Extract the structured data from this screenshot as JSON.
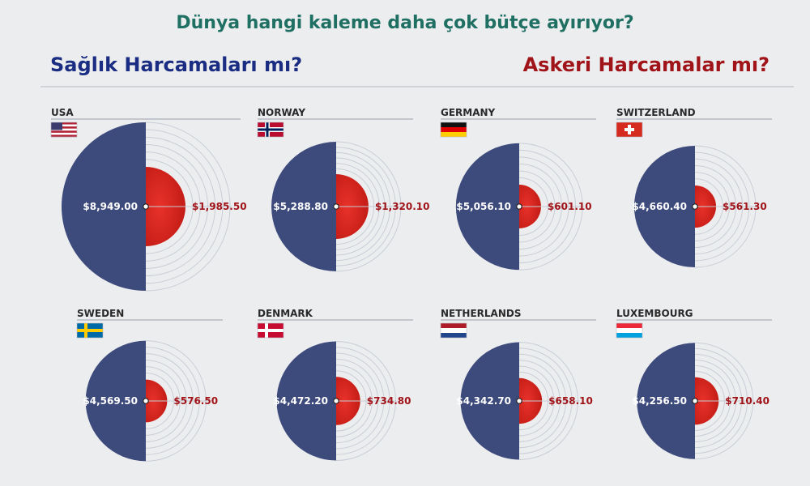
{
  "header": {
    "title": "Dünya hangi kaleme daha çok bütçe ayırıyor?",
    "left_label": "Sağlık Harcamaları mı?",
    "right_label": "Askeri Harcamalar mı?"
  },
  "colors": {
    "health": "#3d4a7c",
    "military": "#d4241c",
    "health_label": "#1a2d82",
    "military_label": "#a01419",
    "title": "#1f6f63",
    "ring": "#c8ced6"
  },
  "chart_data": {
    "type": "half-circle comparison",
    "categories": [
      "USA",
      "NORWAY",
      "GERMANY",
      "SWITZERLAND",
      "SWEDEN",
      "DENMARK",
      "NETHERLANDS",
      "LUXEMBOURG"
    ],
    "series": [
      {
        "name": "Sağlık Harcamaları",
        "values": [
          8949.0,
          5288.8,
          5056.1,
          4660.4,
          4569.5,
          4472.2,
          4342.7,
          4256.5
        ],
        "labels": [
          "$8,949.00",
          "$5,288.80",
          "$5,056.10",
          "$4,660.40",
          "$4,569.50",
          "$4,472.20",
          "$4,342.70",
          "$4,256.50"
        ]
      },
      {
        "name": "Askeri Harcamalar",
        "values": [
          1985.5,
          1320.1,
          601.1,
          561.3,
          576.5,
          734.8,
          658.1,
          710.4
        ],
        "labels": [
          "$1,985.50",
          "$1,320.10",
          "$601.10",
          "$561.30",
          "$576.50",
          "$734.80",
          "$658.10",
          "$710.40"
        ]
      }
    ],
    "flags": [
      "us-flag-icon",
      "norway-flag-icon",
      "germany-flag-icon",
      "switzerland-flag-icon",
      "sweden-flag-icon",
      "denmark-flag-icon",
      "netherlands-flag-icon",
      "luxembourg-flag-icon"
    ]
  }
}
